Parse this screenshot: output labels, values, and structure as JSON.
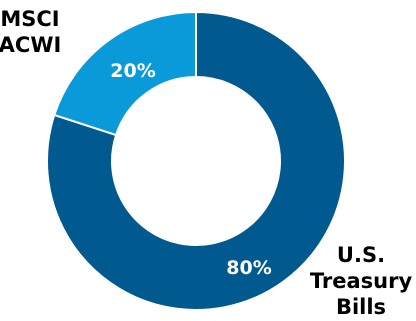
{
  "chart_data": {
    "type": "pie",
    "donut": true,
    "categories": [
      "U.S. Treasury Bills",
      "MSCI ACWI"
    ],
    "values": [
      80,
      20
    ],
    "slice_labels": [
      "80%",
      "20%"
    ],
    "category_labels": [
      [
        "U.S.",
        "Treasury",
        "Bills"
      ],
      [
        "MSCI",
        "ACWI"
      ]
    ],
    "colors": [
      "#005a8f",
      "#0a9ad9"
    ],
    "label_color": "#ffffff",
    "separator_color": "#ffffff"
  }
}
